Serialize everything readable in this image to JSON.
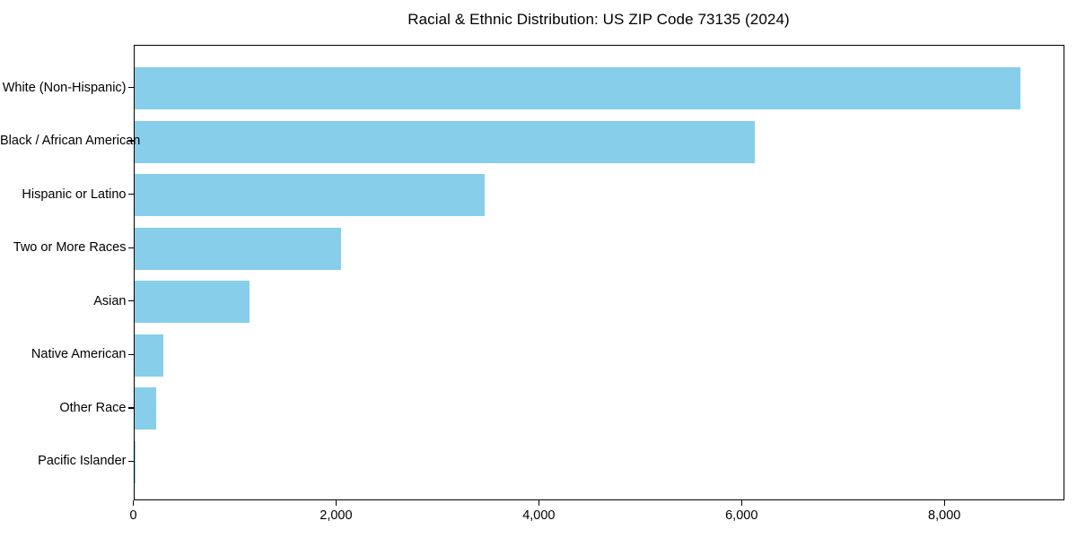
{
  "title": "Racial & Ethnic Distribution: US ZIP Code 73135 (2024)",
  "chart_data": {
    "type": "bar",
    "orientation": "horizontal",
    "title": "Racial & Ethnic Distribution: US ZIP Code 73135 (2024)",
    "categories": [
      "White (Non-Hispanic)",
      "Black / African American",
      "Hispanic or Latino",
      "Two or More Races",
      "Asian",
      "Native American",
      "Other Race",
      "Pacific Islander"
    ],
    "values": [
      8740,
      6120,
      3460,
      2040,
      1140,
      290,
      220,
      10
    ],
    "xlabel": "",
    "ylabel": "",
    "xlim": [
      0,
      9180
    ],
    "xticks": [
      0,
      2000,
      4000,
      6000,
      8000
    ],
    "xtick_labels": [
      "0",
      "2,000",
      "4,000",
      "6,000",
      "8,000"
    ],
    "bar_color": "#87CEEB",
    "frame_color": "#000000",
    "text_color": "#000000",
    "grid": false,
    "legend": null
  }
}
